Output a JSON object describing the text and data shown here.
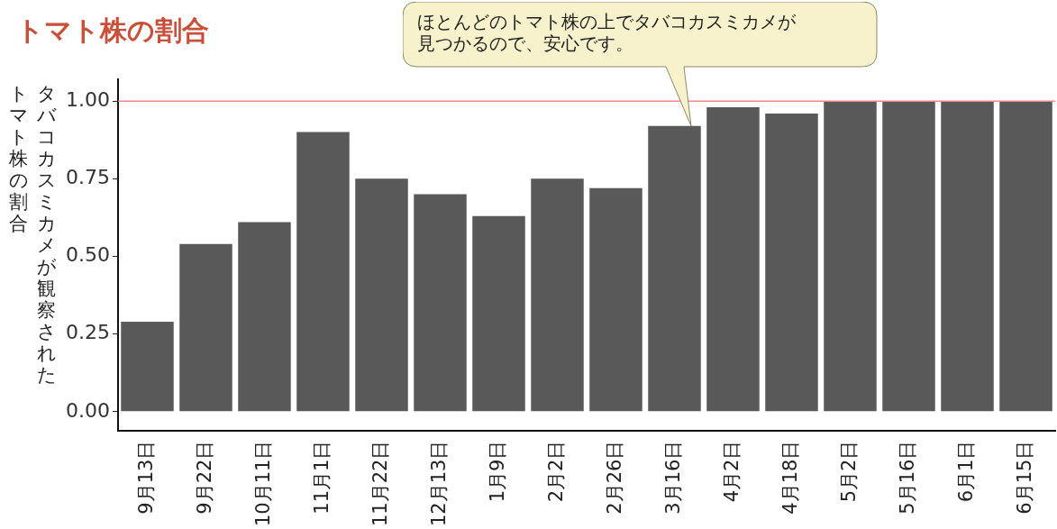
{
  "chart_data": {
    "type": "bar",
    "title": "トマト株の割合",
    "ylabel": "タバコカスミカメが観察されたトマト株の割合",
    "categories": [
      "9月13日",
      "9月22日",
      "10月11日",
      "11月1日",
      "11月22日",
      "12月13日",
      "1月9日",
      "2月2日",
      "2月26日",
      "3月16日",
      "4月2日",
      "4月18日",
      "5月2日",
      "5月16日",
      "6月1日",
      "6月15日"
    ],
    "values": [
      0.29,
      0.54,
      0.61,
      0.9,
      0.75,
      0.7,
      0.63,
      0.75,
      0.72,
      0.92,
      0.98,
      0.96,
      1,
      1,
      1,
      1
    ],
    "color": "#595959",
    "ylim": [
      -0.06,
      1.07
    ],
    "yticks": [
      {
        "value": 0,
        "label": "0.00"
      },
      {
        "value": 0.25,
        "label": "0.25"
      },
      {
        "value": 0.5,
        "label": "0.50"
      },
      {
        "value": 0.75,
        "label": "0.75"
      },
      {
        "value": 1,
        "label": "1.00"
      }
    ],
    "ref_lines": [
      {
        "axis": "y",
        "value": 1,
        "color": "#f08a8a"
      }
    ],
    "annotations": [
      "ほとんどのトマト株の上でタバコカスミカメが見つかるので、安心です。"
    ],
    "grid": false,
    "legend": false
  }
}
